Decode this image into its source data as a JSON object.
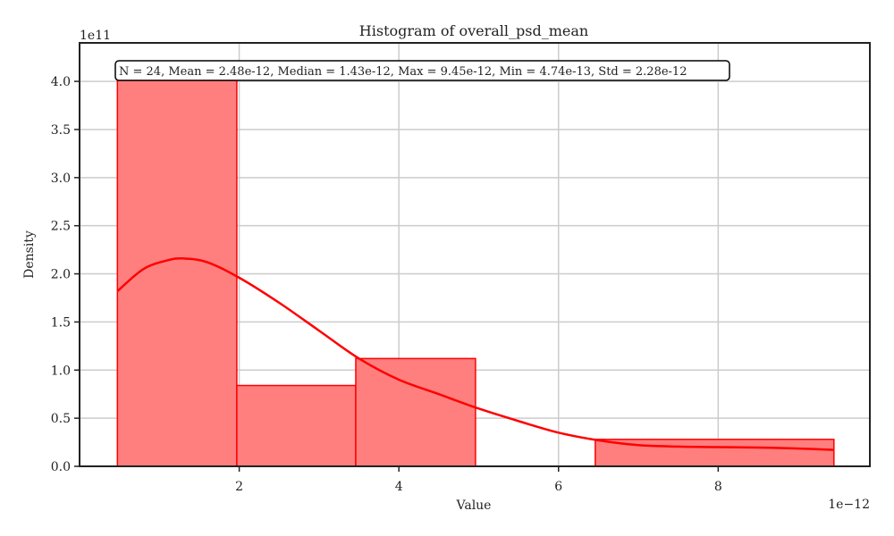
{
  "chart_data": {
    "type": "bar",
    "title": "Histogram of overall_psd_mean",
    "xlabel": "Value",
    "ylabel": "Density",
    "x_offset_label": "1e−12",
    "y_offset_label": "1e11",
    "x_scale_exponent": -12,
    "y_scale_exponent": 11,
    "xlim": [
      0.0,
      9.9e-12
    ],
    "ylim": [
      0,
      440000000000.0
    ],
    "x_ticks": [
      2e-12,
      4e-12,
      6e-12,
      8e-12
    ],
    "x_tick_labels": [
      "2",
      "4",
      "6",
      "8"
    ],
    "y_ticks": [
      0,
      50000000000.0,
      100000000000.0,
      150000000000.0,
      200000000000.0,
      250000000000.0,
      300000000000.0,
      350000000000.0,
      400000000000.0
    ],
    "y_tick_labels": [
      "0.0",
      "0.5",
      "1.0",
      "1.5",
      "2.0",
      "2.5",
      "3.0",
      "3.5",
      "4.0"
    ],
    "grid": true,
    "bins": [
      {
        "x0": 4.74e-13,
        "x1": 1.97e-12,
        "density": 401000000000.0
      },
      {
        "x0": 1.97e-12,
        "x1": 3.46e-12,
        "density": 84000000000.0
      },
      {
        "x0": 3.46e-12,
        "x1": 4.96e-12,
        "density": 112000000000.0
      },
      {
        "x0": 4.96e-12,
        "x1": 6.46e-12,
        "density": 0
      },
      {
        "x0": 6.46e-12,
        "x1": 9.45e-12,
        "density": 28000000000.0
      }
    ],
    "kde": {
      "x": [
        4.74e-13,
        8e-13,
        1.1e-12,
        1.3e-12,
        1.6e-12,
        2e-12,
        2.5e-12,
        3e-12,
        3.5e-12,
        4e-12,
        4.5e-12,
        5e-12,
        5.5e-12,
        6e-12,
        6.5e-12,
        7e-12,
        7.5e-12,
        8e-12,
        8.5e-12,
        9e-12,
        9.45e-12
      ],
      "y": [
        182000000000.0,
        205000000000.0,
        214000000000.0,
        216000000000.0,
        212000000000.0,
        196000000000.0,
        170000000000.0,
        141000000000.0,
        112000000000.0,
        90000000000.0,
        75000000000.0,
        60000000000.0,
        47000000000.0,
        35000000000.0,
        27000000000.0,
        22000000000.0,
        20500000000.0,
        20000000000.0,
        19500000000.0,
        18500000000.0,
        17000000000.0
      ]
    },
    "stats_box": "N = 24, Mean = 2.48e-12, Median = 1.43e-12, Max = 9.45e-12, Min = 4.74e-13, Std = 2.28e-12",
    "colors": {
      "bar_fill": "#ff7f7f",
      "bar_edge": "#ff0000",
      "kde_line": "#ff0000",
      "grid": "#cccccc",
      "axis": "#222222"
    }
  }
}
